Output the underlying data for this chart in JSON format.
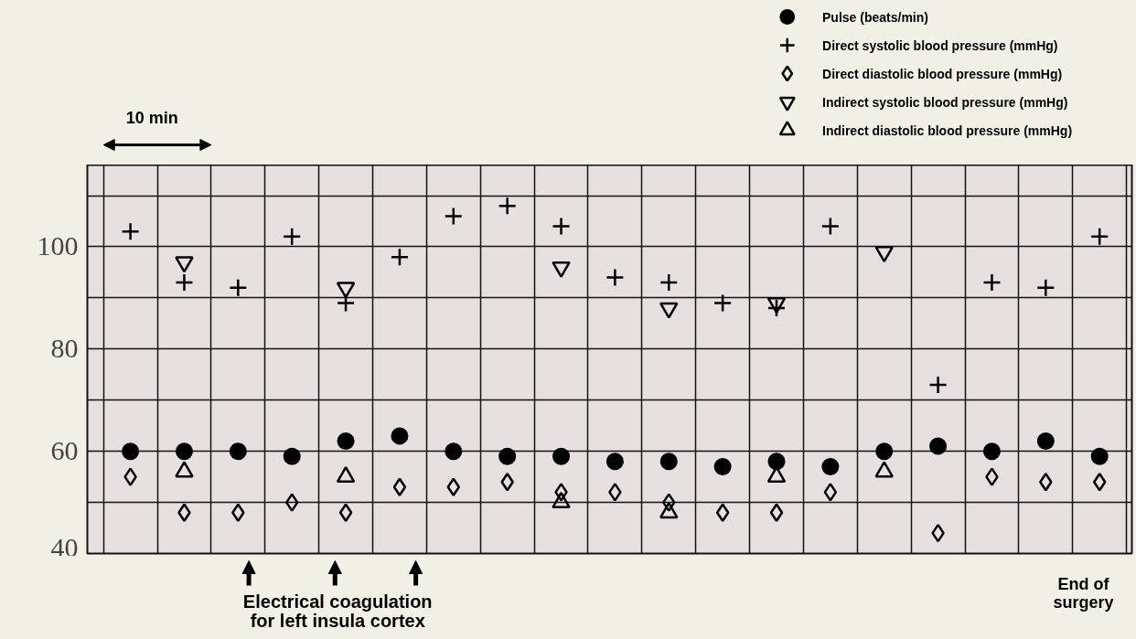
{
  "chart_data": {
    "type": "scatter",
    "categories": [
      null,
      null,
      null,
      null,
      null,
      null,
      null,
      null,
      null,
      null,
      null,
      null,
      null,
      null,
      null,
      null,
      null,
      null,
      null
    ],
    "series": [
      {
        "name": "Pulse (beats/min)",
        "color": "#000000",
        "marker": "circle",
        "values": [
          60,
          60,
          60,
          59,
          62,
          63,
          60,
          59,
          59,
          58,
          58,
          57,
          58,
          57,
          60,
          61,
          60,
          62,
          59
        ]
      },
      {
        "name": "Direct systolic blood pressure (mmHg)",
        "color": "#000000",
        "marker": "cross",
        "values": [
          103,
          93,
          92,
          102,
          89,
          98,
          106,
          108,
          104,
          94,
          93,
          89,
          88,
          104,
          null,
          73,
          93,
          92,
          102
        ]
      },
      {
        "name": "Direct diastolic blood pressure (mmHg)",
        "color": "#000000",
        "marker": "diamond",
        "values": [
          55,
          48,
          48,
          50,
          48,
          53,
          53,
          54,
          52,
          52,
          50,
          48,
          48,
          52,
          null,
          44,
          55,
          54,
          54
        ]
      },
      {
        "name": "Indirect systolic blood pressure (mmHg)",
        "color": "#000000",
        "marker": "triangle",
        "values": [
          null,
          97,
          null,
          null,
          92,
          null,
          null,
          null,
          96,
          null,
          88,
          null,
          89,
          null,
          99,
          null,
          null,
          null,
          null
        ]
      },
      {
        "name": "Indirect diastolic blood pressure (mmHg)",
        "color": "#000000",
        "marker": "triangle",
        "values": [
          null,
          56,
          null,
          null,
          55,
          null,
          null,
          null,
          50,
          null,
          48,
          null,
          55,
          null,
          56,
          null,
          null,
          null,
          null
        ]
      }
    ],
    "ylim": [
      40,
      116
    ],
    "yticks": [
      40,
      {
        "value": 50,
        "label": null
      },
      60,
      {
        "value": 70,
        "label": null
      },
      80,
      {
        "value": 90,
        "label": null
      },
      100,
      {
        "value": 110,
        "label": null
      }
    ],
    "grid": true,
    "legend": "top right",
    "tick_labels": "y",
    "annotations": [
      "10 min",
      "Electrical coagulation for left insula cortex",
      "End of surgery"
    ]
  }
}
